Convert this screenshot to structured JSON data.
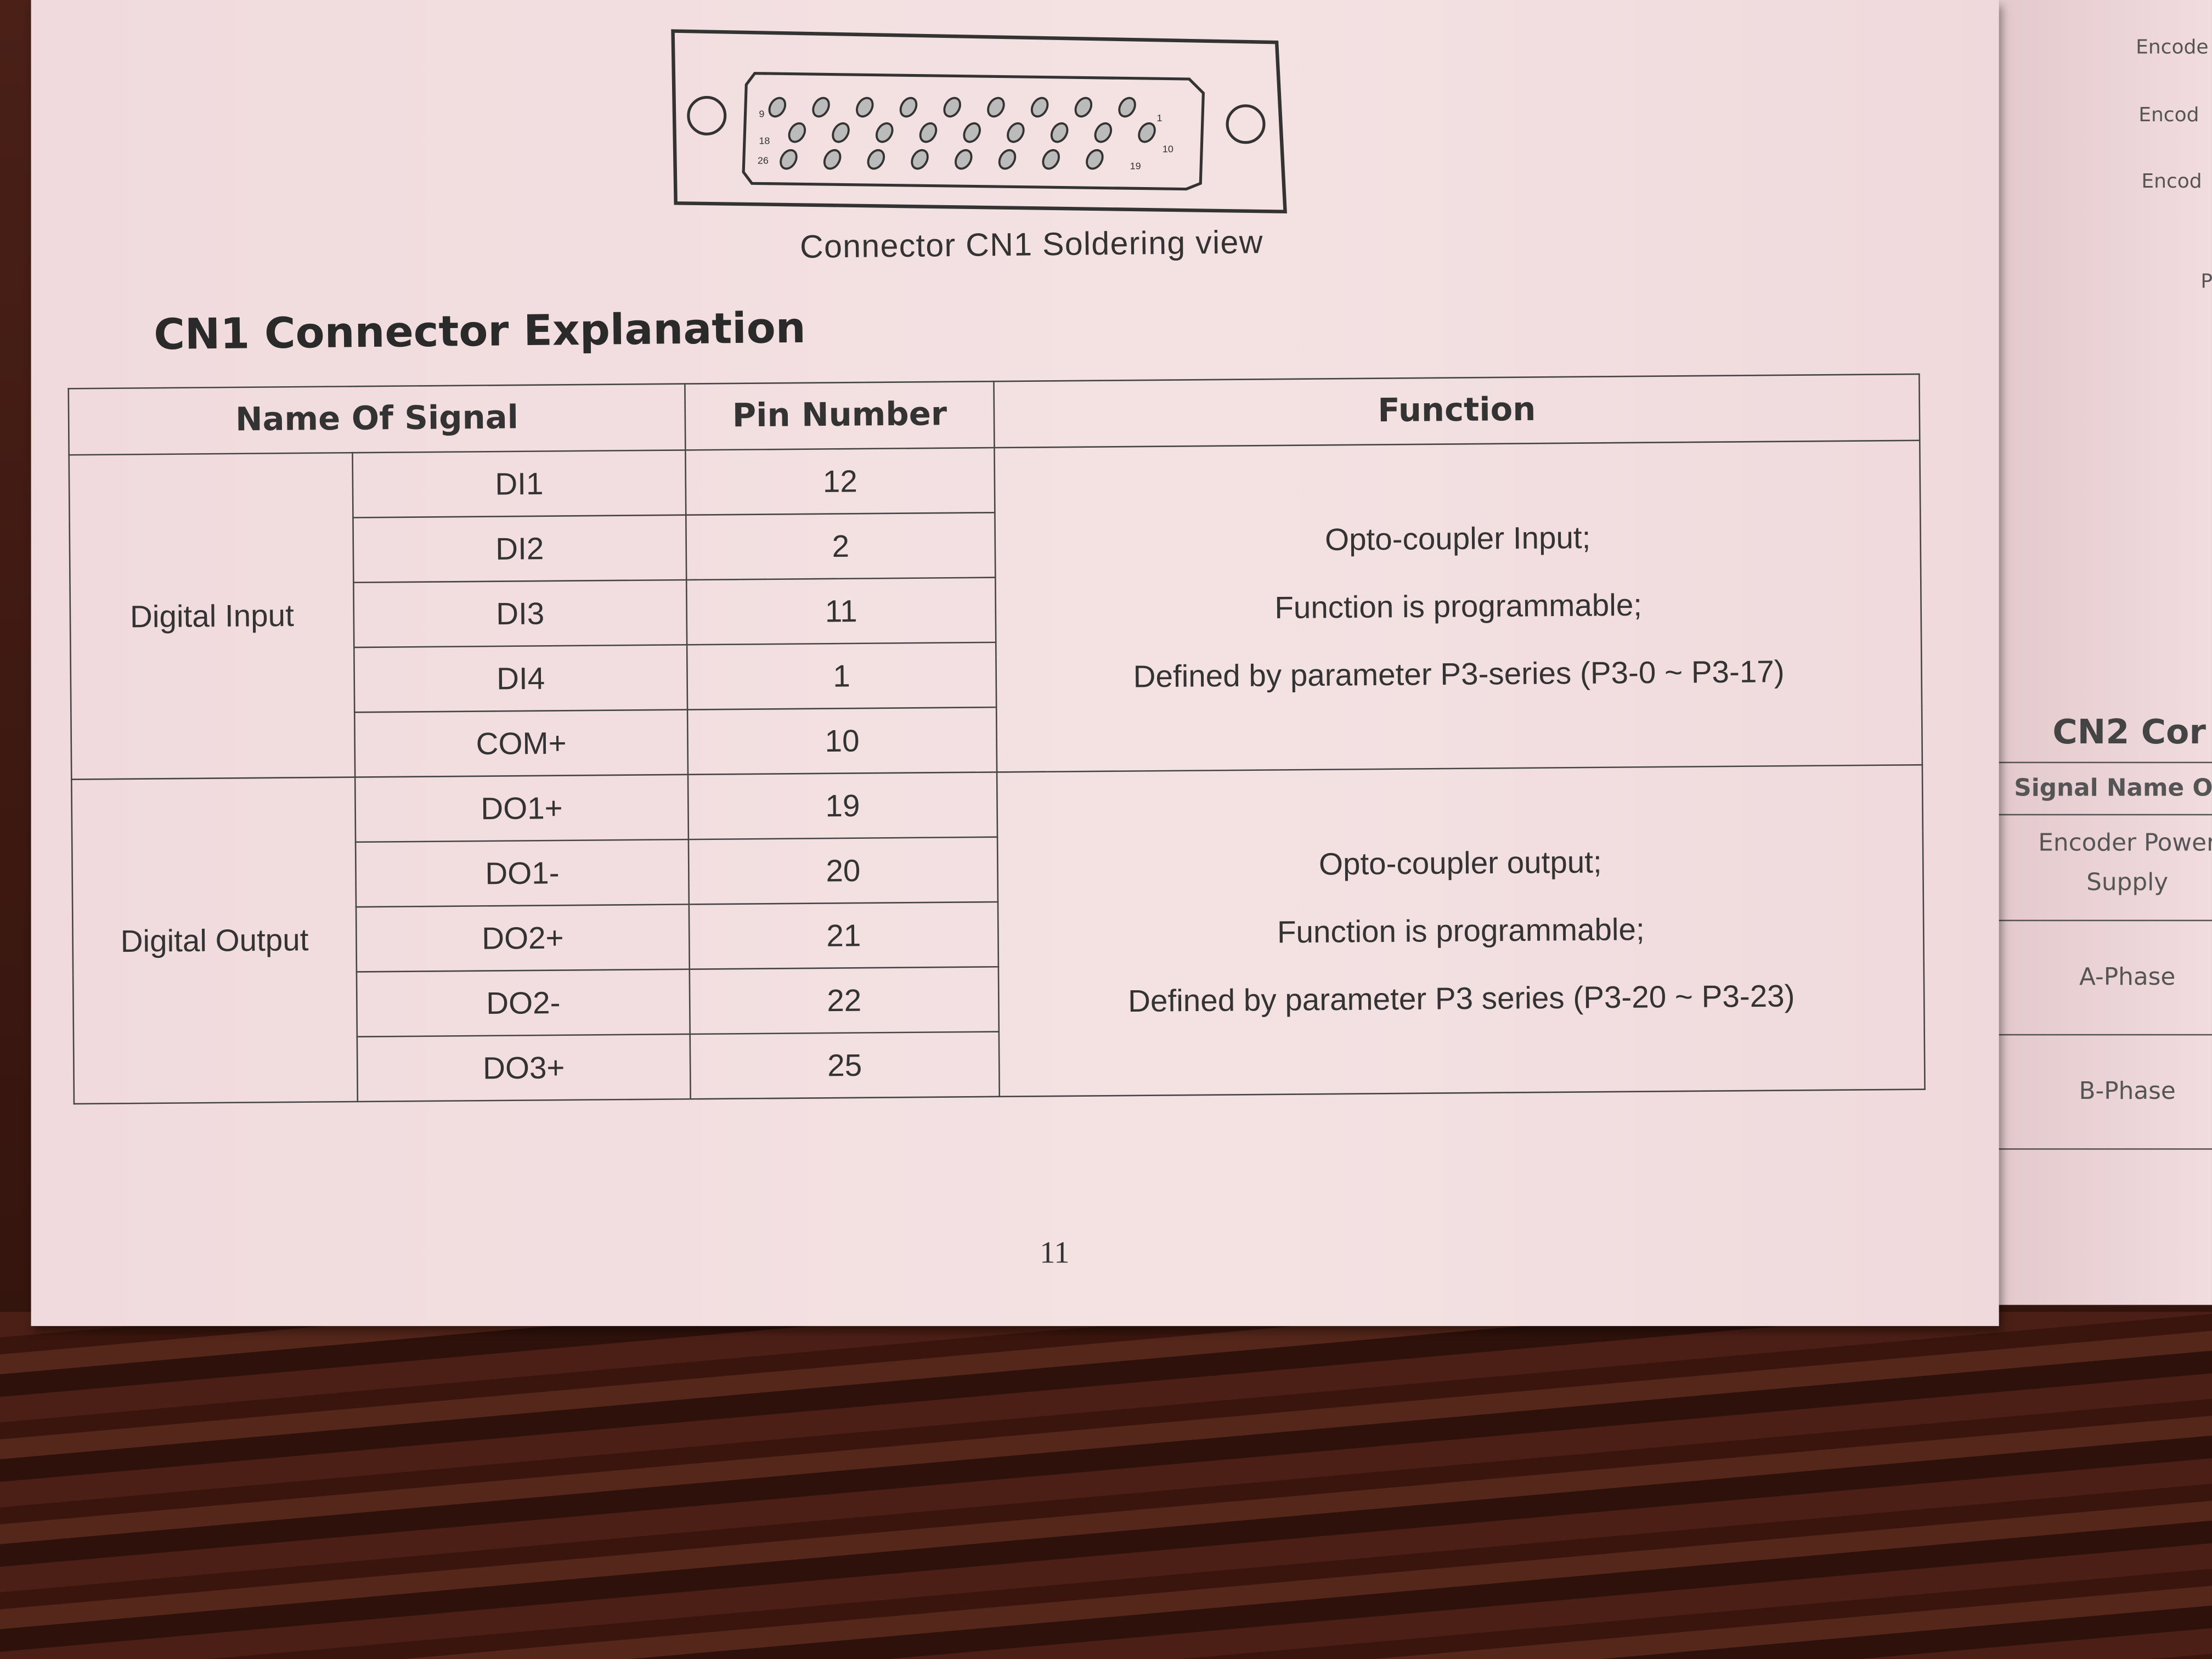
{
  "figure": {
    "caption": "Connector CN1 Soldering view",
    "pin_labels": [
      "9",
      "1",
      "18",
      "10",
      "26",
      "19"
    ]
  },
  "section_title": "CN1 Connector Explanation",
  "table": {
    "headers": [
      "Name Of Signal",
      "Pin Number",
      "Function"
    ],
    "groups": [
      {
        "name": "Digital Input",
        "rows": [
          {
            "signal": "DI1",
            "pin": "12"
          },
          {
            "signal": "DI2",
            "pin": "2"
          },
          {
            "signal": "DI3",
            "pin": "11"
          },
          {
            "signal": "DI4",
            "pin": "1"
          },
          {
            "signal": "COM+",
            "pin": "10"
          }
        ],
        "function": [
          "Opto-coupler Input;",
          "Function is programmable;",
          "Defined by parameter P3-series (P3-0 ~ P3-17)"
        ]
      },
      {
        "name": "Digital Output",
        "rows": [
          {
            "signal": "DO1+",
            "pin": "19"
          },
          {
            "signal": "DO1-",
            "pin": "20"
          },
          {
            "signal": "DO2+",
            "pin": "21"
          },
          {
            "signal": "DO2-",
            "pin": "22"
          },
          {
            "signal": "DO3+",
            "pin": "25"
          }
        ],
        "function": [
          "Opto-coupler output;",
          "Function is programmable;",
          "Defined by parameter P3 series (P3-20 ~ P3-23)"
        ]
      }
    ]
  },
  "page_number": "11",
  "right_page": {
    "labels": [
      "Encode",
      "Encod",
      "Encod",
      "P"
    ],
    "cn2_title": "CN2 Cor",
    "cn2_header": "Signal Name Of I",
    "cn2_rows": [
      "Encoder Power",
      "Supply",
      "A-Phase",
      "B-Phase"
    ]
  }
}
